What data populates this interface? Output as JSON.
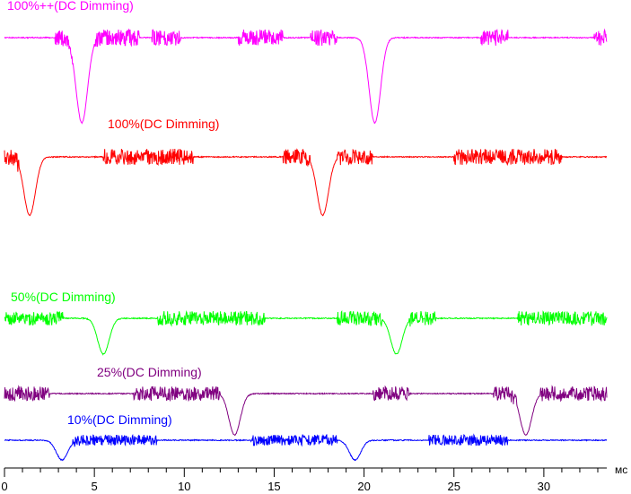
{
  "chart_data": {
    "type": "line",
    "xlabel": "мс",
    "x_range": [
      0,
      33.5
    ],
    "x_ticks": [
      "0",
      "5",
      "10",
      "15",
      "20",
      "25",
      "30"
    ],
    "grid": false,
    "series": [
      {
        "name": "100%++(DC Dimming)",
        "color": "#ff00ff",
        "baseline": 1.0,
        "dips": [
          {
            "center": 4.3,
            "width": 0.45,
            "depth": 1.0
          },
          {
            "center": 20.6,
            "width": 0.45,
            "depth": 1.0
          }
        ],
        "noise_regions": [
          [
            2.8,
            3.8
          ],
          [
            5.0,
            7.5
          ],
          [
            8.2,
            9.8
          ],
          [
            13.0,
            15.5
          ],
          [
            17.0,
            18.5
          ],
          [
            26.5,
            28.0
          ],
          [
            32.8,
            33.5
          ]
        ]
      },
      {
        "name": "100%(DC Dimming)",
        "color": "#ff0000",
        "baseline": 1.0,
        "dips": [
          {
            "center": 1.4,
            "width": 0.45,
            "depth": 1.0
          },
          {
            "center": 17.7,
            "width": 0.45,
            "depth": 1.0
          }
        ],
        "noise_regions": [
          [
            0.0,
            0.8
          ],
          [
            5.5,
            9.0
          ],
          [
            9.0,
            10.5
          ],
          [
            15.5,
            17.0
          ],
          [
            18.5,
            20.5
          ],
          [
            25.0,
            30.0
          ],
          [
            30.0,
            31.0
          ]
        ]
      },
      {
        "name": "50%(DC Dimming)",
        "color": "#00ff00",
        "baseline": 1.0,
        "dips": [
          {
            "center": 5.5,
            "width": 0.45,
            "depth": 1.0
          },
          {
            "center": 21.8,
            "width": 0.45,
            "depth": 1.0
          }
        ],
        "noise_regions": [
          [
            0.0,
            3.3
          ],
          [
            8.5,
            14.0
          ],
          [
            14.0,
            14.5
          ],
          [
            18.5,
            21.0
          ],
          [
            22.5,
            24.0
          ],
          [
            28.5,
            33.5
          ]
        ]
      },
      {
        "name": "25%(DC Dimming)",
        "color": "#800080",
        "baseline": 1.0,
        "dips": [
          {
            "center": 12.8,
            "width": 0.45,
            "depth": 1.0
          },
          {
            "center": 29.0,
            "width": 0.45,
            "depth": 1.0
          }
        ],
        "noise_regions": [
          [
            0.0,
            2.5
          ],
          [
            7.2,
            12.0
          ],
          [
            20.5,
            22.5
          ],
          [
            27.2,
            28.5
          ],
          [
            29.8,
            33.5
          ]
        ]
      },
      {
        "name": "10%(DC Dimming)",
        "color": "#0000ff",
        "baseline": 1.0,
        "dips": [
          {
            "center": 3.2,
            "width": 0.45,
            "depth": 1.0
          },
          {
            "center": 19.5,
            "width": 0.45,
            "depth": 1.0
          }
        ],
        "noise_regions": [
          [
            3.8,
            8.5
          ],
          [
            13.7,
            18.5
          ],
          [
            23.6,
            28.0
          ]
        ]
      }
    ]
  }
}
